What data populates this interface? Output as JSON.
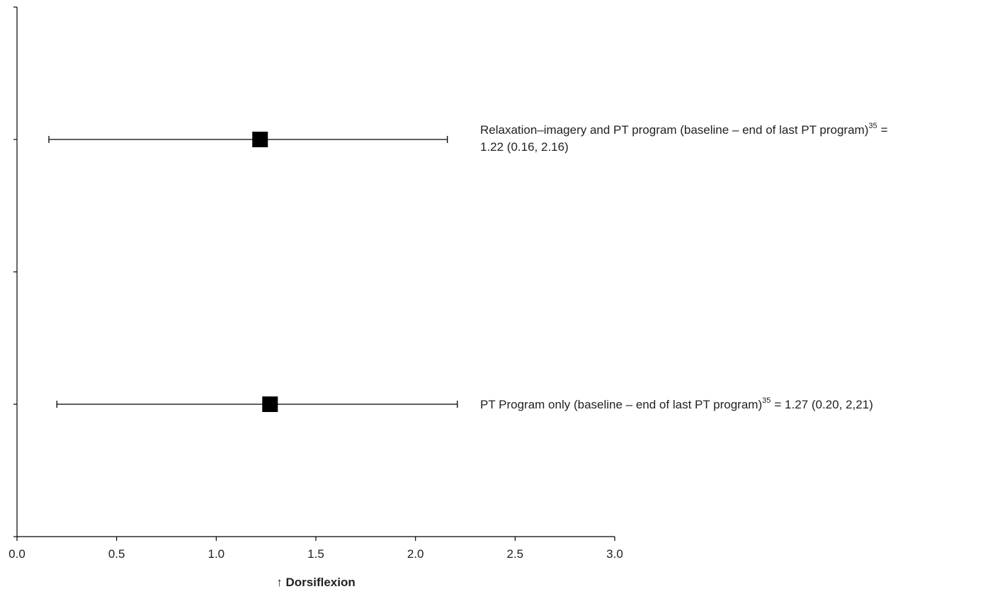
{
  "chart_data": {
    "type": "forest",
    "xlabel": "↑ Dorsiflexion",
    "xlim": [
      0,
      3
    ],
    "xticks": [
      {
        "value": 0,
        "label": "0.0"
      },
      0.5,
      {
        "value": 1,
        "label": "1.0"
      },
      1.5,
      {
        "value": 2,
        "label": "2.0"
      },
      2.5,
      {
        "value": 3,
        "label": "3.0"
      }
    ],
    "color": "#000000",
    "rows": [
      {
        "label": "Relaxation–imagery and PT program (baseline – end of last PT program)",
        "superscript": "35",
        "label_end": "=",
        "label_line2": "1.22 (0.16, 2.16)",
        "estimate": 1.22,
        "lower": 0.16,
        "upper": 2.16
      },
      {
        "label": "PT Program only (baseline – end of last PT program)",
        "superscript": "35",
        "label_end": "= 1.27 (0.20, 2,21)",
        "estimate": 1.27,
        "lower": 0.2,
        "upper": 2.21
      }
    ]
  }
}
